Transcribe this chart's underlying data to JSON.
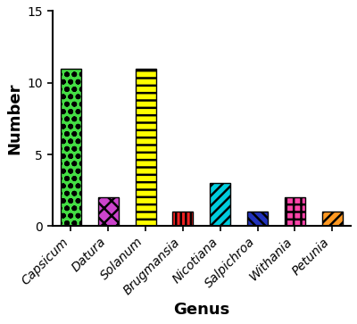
{
  "categories": [
    "Capsicum",
    "Datura",
    "Solanum",
    "Brugmansia",
    "Nicotiana",
    "Salpichroa",
    "Withania",
    "Petunia"
  ],
  "values": [
    11,
    2,
    11,
    1,
    3,
    1,
    2,
    1
  ],
  "bar_colors": [
    "#44dd44",
    "#cc44cc",
    "#ffff00",
    "#ee2222",
    "#00ccdd",
    "#2233bb",
    "#ff44aa",
    "#ff9922"
  ],
  "edge_colors": [
    "#000000",
    "#000000",
    "#000000",
    "#000000",
    "#000000",
    "#000000",
    "#000000",
    "#000000"
  ],
  "xlabel": "Genus",
  "ylabel": "Number",
  "ylim": [
    0,
    15
  ],
  "yticks": [
    0,
    5,
    10,
    15
  ],
  "background_color": "#ffffff",
  "bar_width": 0.55,
  "xlabel_fontsize": 13,
  "ylabel_fontsize": 13,
  "tick_fontsize": 10
}
